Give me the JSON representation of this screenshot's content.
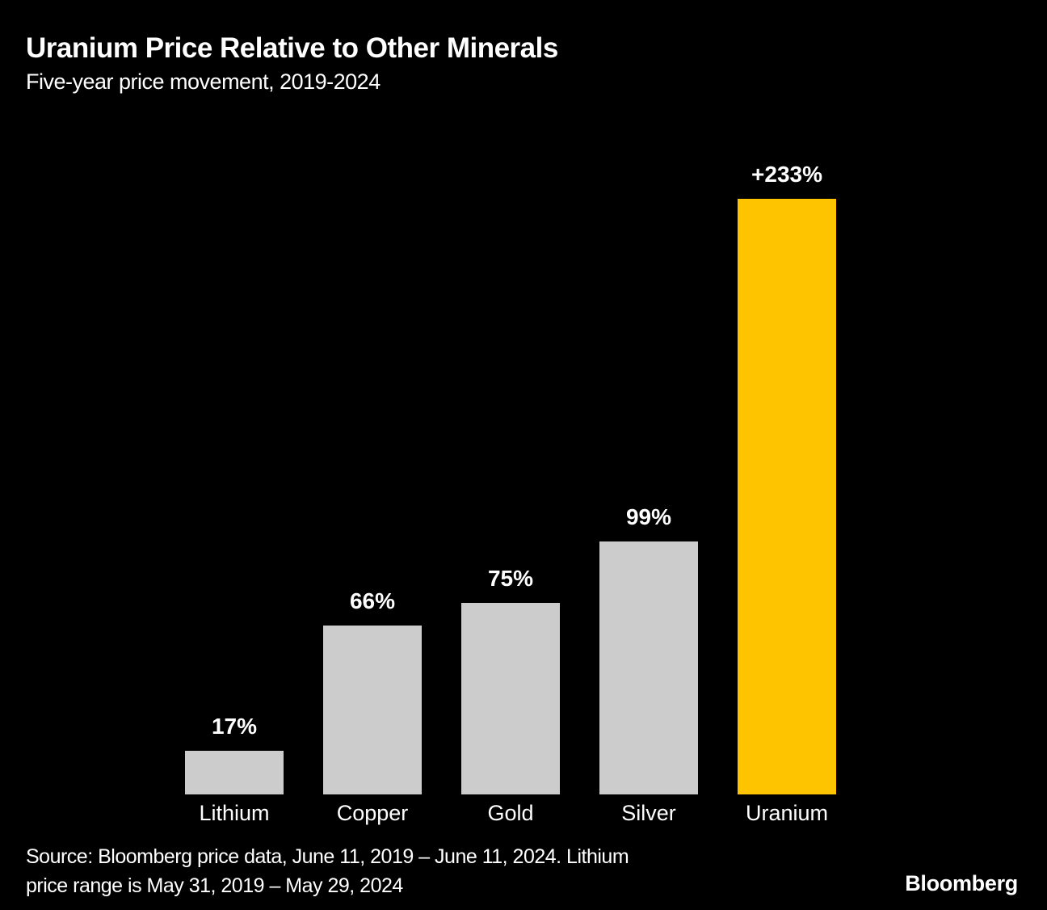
{
  "header": {
    "title": "Uranium Price Relative to Other Minerals",
    "subtitle": "Five-year price movement, 2019-2024"
  },
  "footer": {
    "source_line1": "Source: Bloomberg price data, June 11, 2019 – June 11, 2024. Lithium",
    "source_line2": "price range is May 31, 2019 – May 29, 2024",
    "brand": "Bloomberg"
  },
  "colors": {
    "background": "#000000",
    "text": "#ffffff",
    "bar_default": "#cccccc",
    "bar_highlight": "#ffc400"
  },
  "chart_data": {
    "type": "bar",
    "title": "Uranium Price Relative to Other Minerals",
    "subtitle": "Five-year price movement, 2019-2024",
    "categories": [
      "Lithium",
      "Copper",
      "Gold",
      "Silver",
      "Uranium"
    ],
    "values": [
      17,
      66,
      75,
      99,
      233
    ],
    "value_labels": [
      "17%",
      "66%",
      "75%",
      "99%",
      "+233%"
    ],
    "unit": "%",
    "ylim": [
      0,
      233
    ],
    "grid": false,
    "legend": "none",
    "axes_hidden": true,
    "bar_colors": [
      "#cccccc",
      "#cccccc",
      "#cccccc",
      "#cccccc",
      "#ffc400"
    ],
    "highlight_category": "Uranium"
  }
}
